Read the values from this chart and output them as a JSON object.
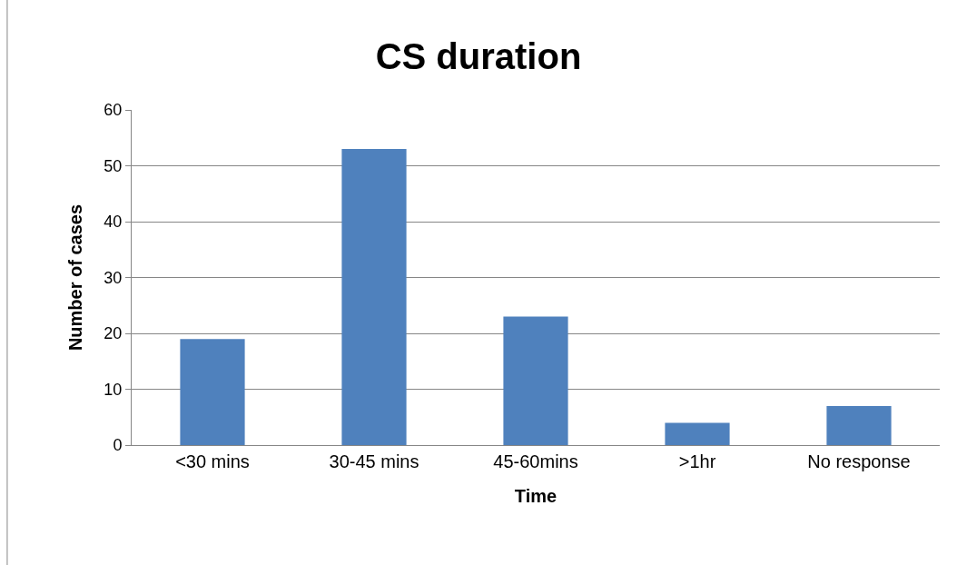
{
  "chart_data": {
    "type": "bar",
    "title": "CS duration",
    "xlabel": "Time",
    "ylabel": "Number of cases",
    "categories": [
      "<30 mins",
      "30-45 mins",
      "45-60mins",
      ">1hr",
      "No response"
    ],
    "values": [
      19,
      53,
      23,
      4,
      7
    ],
    "color": "#4f81bd",
    "ylim": [
      0,
      60
    ],
    "yticks": [
      0,
      10,
      20,
      30,
      40,
      50,
      60
    ],
    "grid": "y"
  }
}
